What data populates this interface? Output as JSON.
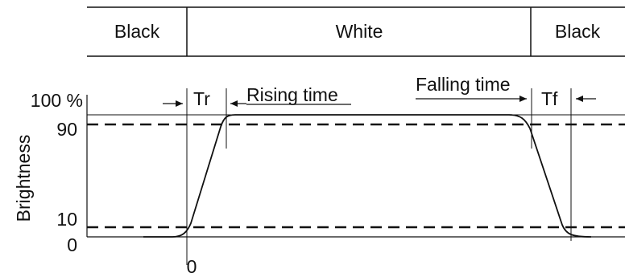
{
  "header": {
    "cells": [
      "Black",
      "White",
      "Black"
    ]
  },
  "axis": {
    "y_label": "Brightness",
    "y_ticks": [
      "100 %",
      "90",
      "10",
      "0"
    ],
    "x_origin": "0"
  },
  "annotations": {
    "tr": "Tr",
    "rising_time": "Rising time",
    "falling_time": "Falling time",
    "tf": "Tf"
  },
  "levels": {
    "upper_threshold": 90,
    "lower_threshold": 10,
    "max": 100,
    "min": 0
  }
}
